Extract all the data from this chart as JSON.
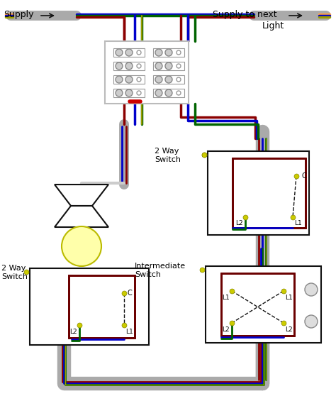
{
  "bg": "#ffffff",
  "brown": "#8B0000",
  "blue": "#0000CC",
  "green_yellow": "#9B9B00",
  "green": "#006400",
  "orange": "#FFA040",
  "gray": "#AAAAAA",
  "black": "#111111",
  "red_marker": "#CC0000",
  "dark_red": "#6B0000",
  "yellow_dot": "#CCCC00",
  "bulb_fill": "#FFFFAA",
  "supply_label": "Supply",
  "supply_next_label": "Supply to next",
  "light_label": "Light",
  "label_2way": "2 Way\nSwitch",
  "label_inter": "Intermediate\nSwitch"
}
